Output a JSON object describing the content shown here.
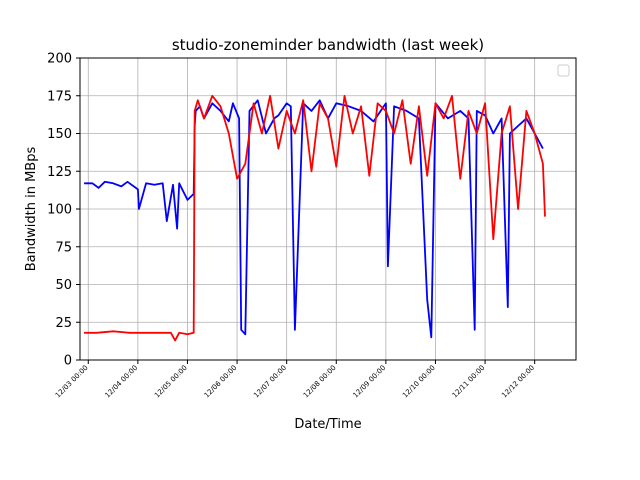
{
  "chart_data": {
    "type": "line",
    "title": "studio-zoneminder bandwidth (last week)",
    "xlabel": "Date/Time",
    "ylabel": "Bandwidth in MBps",
    "ylim": [
      0,
      200
    ],
    "yticks": [
      0,
      25,
      50,
      75,
      100,
      125,
      150,
      175,
      200
    ],
    "xlim": [
      "12/02 20:00",
      "12/12 20:00"
    ],
    "xticks": [
      "12/03 00:00",
      "12/04 00:00",
      "12/05 00:00",
      "12/06 00:00",
      "12/07 00:00",
      "12/08 00:00",
      "12/09 00:00",
      "12/10 00:00",
      "12/11 00:00",
      "12/12 00:00"
    ],
    "grid": true,
    "legend": "top-right",
    "series": [
      {
        "color": "#0000ff",
        "x": [
          "12/02 22:00",
          "12/03 02:00",
          "12/03 05:00",
          "12/03 08:00",
          "12/03 12:00",
          "12/03 16:00",
          "12/03 19:00",
          "12/04 00:00",
          "12/04 00:30",
          "12/04 04:00",
          "12/04 08:00",
          "12/04 12:00",
          "12/04 14:00",
          "12/04 17:00",
          "12/04 19:00",
          "12/04 20:00",
          "12/05 00:00",
          "12/05 03:00",
          "12/05 03:30",
          "12/05 04:00",
          "12/05 06:00",
          "12/05 08:00",
          "12/05 12:00",
          "12/05 16:00",
          "12/05 20:00",
          "12/05 22:00",
          "12/06 01:00",
          "12/06 02:00",
          "12/06 04:00",
          "12/06 06:00",
          "12/06 10:00",
          "12/06 14:00",
          "12/06 18:00",
          "12/06 20:00",
          "12/07 00:00",
          "12/07 02:00",
          "12/07 04:00",
          "12/07 08:00",
          "12/07 12:00",
          "12/07 16:00",
          "12/07 20:00",
          "12/08 00:00",
          "12/08 06:00",
          "12/08 12:00",
          "12/08 18:00",
          "12/09 00:00",
          "12/09 01:00",
          "12/09 04:00",
          "12/09 10:00",
          "12/09 16:00",
          "12/09 20:00",
          "12/09 22:00",
          "12/10 00:00",
          "12/10 06:00",
          "12/10 12:00",
          "12/10 16:00",
          "12/10 19:00",
          "12/10 20:00",
          "12/11 00:00",
          "12/11 04:00",
          "12/11 08:00",
          "12/11 11:00",
          "12/11 12:00",
          "12/11 16:00",
          "12/11 20:00",
          "12/12 00:00",
          "12/12 04:00"
        ],
        "y": [
          117,
          117,
          114,
          118,
          117,
          115,
          118,
          113,
          100,
          117,
          116,
          117,
          92,
          116,
          87,
          117,
          106,
          110,
          155,
          165,
          168,
          160,
          170,
          165,
          158,
          170,
          160,
          20,
          17,
          165,
          172,
          150,
          160,
          162,
          170,
          168,
          20,
          170,
          165,
          172,
          160,
          170,
          168,
          165,
          158,
          170,
          62,
          168,
          165,
          160,
          40,
          15,
          170,
          160,
          165,
          160,
          20,
          165,
          162,
          150,
          160,
          35,
          150,
          155,
          160,
          150,
          140
        ]
      },
      {
        "color": "#ff0000",
        "x": [
          "12/02 22:00",
          "12/03 04:00",
          "12/03 12:00",
          "12/03 20:00",
          "12/04 04:00",
          "12/04 12:00",
          "12/04 16:00",
          "12/04 18:00",
          "12/04 20:00",
          "12/05 00:00",
          "12/05 03:00",
          "12/05 03:30",
          "12/05 05:00",
          "12/05 08:00",
          "12/05 12:00",
          "12/05 16:00",
          "12/05 20:00",
          "12/06 00:00",
          "12/06 04:00",
          "12/06 08:00",
          "12/06 12:00",
          "12/06 16:00",
          "12/06 20:00",
          "12/07 00:00",
          "12/07 04:00",
          "12/07 08:00",
          "12/07 12:00",
          "12/07 16:00",
          "12/07 20:00",
          "12/08 00:00",
          "12/08 04:00",
          "12/08 08:00",
          "12/08 12:00",
          "12/08 16:00",
          "12/08 20:00",
          "12/09 00:00",
          "12/09 04:00",
          "12/09 08:00",
          "12/09 12:00",
          "12/09 16:00",
          "12/09 20:00",
          "12/10 00:00",
          "12/10 04:00",
          "12/10 08:00",
          "12/10 12:00",
          "12/10 16:00",
          "12/10 20:00",
          "12/11 00:00",
          "12/11 04:00",
          "12/11 08:00",
          "12/11 12:00",
          "12/11 16:00",
          "12/11 20:00",
          "12/12 00:00",
          "12/12 04:00",
          "12/12 05:00"
        ],
        "y": [
          18,
          18,
          19,
          18,
          18,
          18,
          18,
          13,
          18,
          17,
          18,
          165,
          172,
          160,
          175,
          168,
          150,
          120,
          130,
          170,
          150,
          175,
          140,
          165,
          150,
          172,
          125,
          170,
          160,
          128,
          175,
          150,
          168,
          122,
          170,
          165,
          150,
          172,
          130,
          168,
          122,
          170,
          160,
          175,
          120,
          165,
          150,
          170,
          80,
          150,
          168,
          100,
          165,
          150,
          130,
          95
        ]
      }
    ]
  }
}
